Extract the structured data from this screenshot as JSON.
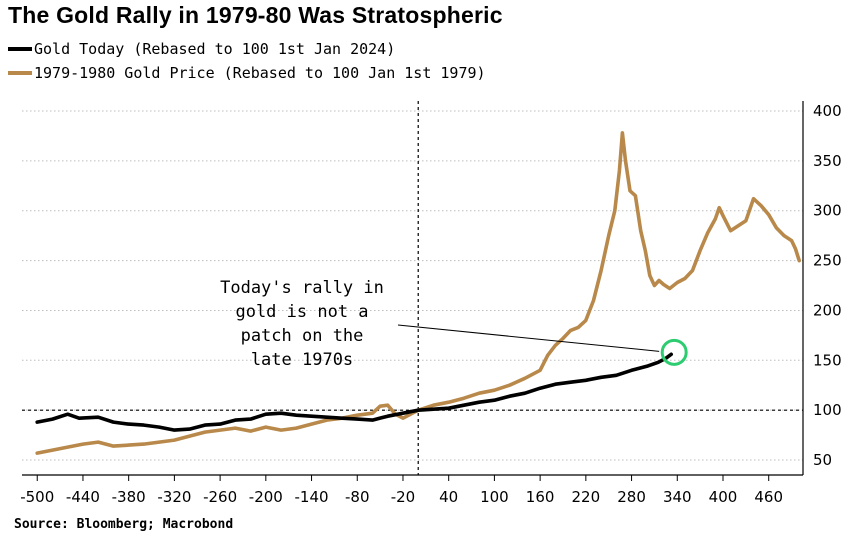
{
  "chart_data": {
    "type": "line",
    "title": "The Gold Rally in 1979-80 Was Stratospheric",
    "xlabel": "",
    "ylabel": "",
    "xlim": [
      -520,
      505
    ],
    "ylim": [
      35,
      410
    ],
    "x_ticks": [
      -500,
      -440,
      -380,
      -320,
      -260,
      -200,
      -140,
      -80,
      -20,
      40,
      100,
      160,
      220,
      280,
      340,
      400,
      460
    ],
    "y_ticks": [
      50,
      100,
      150,
      200,
      250,
      300,
      350,
      400
    ],
    "reference_hline": 100,
    "reference_vline": 0,
    "series": [
      {
        "name": "Gold Today (Rebased to 100 1st Jan 2024)",
        "color": "#000000",
        "points": [
          [
            -500,
            88
          ],
          [
            -480,
            91
          ],
          [
            -460,
            96
          ],
          [
            -445,
            92
          ],
          [
            -420,
            93
          ],
          [
            -400,
            88
          ],
          [
            -380,
            86
          ],
          [
            -360,
            85
          ],
          [
            -340,
            83
          ],
          [
            -320,
            80
          ],
          [
            -300,
            81
          ],
          [
            -280,
            85
          ],
          [
            -260,
            86
          ],
          [
            -240,
            90
          ],
          [
            -220,
            91
          ],
          [
            -200,
            96
          ],
          [
            -180,
            97
          ],
          [
            -160,
            95
          ],
          [
            -140,
            94
          ],
          [
            -120,
            93
          ],
          [
            -100,
            92
          ],
          [
            -80,
            91
          ],
          [
            -60,
            90
          ],
          [
            -40,
            94
          ],
          [
            -20,
            97
          ],
          [
            0,
            100
          ],
          [
            20,
            101
          ],
          [
            40,
            102
          ],
          [
            60,
            105
          ],
          [
            80,
            108
          ],
          [
            100,
            110
          ],
          [
            120,
            114
          ],
          [
            140,
            117
          ],
          [
            160,
            122
          ],
          [
            180,
            126
          ],
          [
            200,
            128
          ],
          [
            220,
            130
          ],
          [
            240,
            133
          ],
          [
            260,
            135
          ],
          [
            280,
            140
          ],
          [
            300,
            144
          ],
          [
            315,
            148
          ],
          [
            325,
            152
          ],
          [
            332,
            156
          ]
        ]
      },
      {
        "name": "1979-1980 Gold Price (Rebased to 100 Jan 1st 1979)",
        "color": "#b8894a",
        "points": [
          [
            -500,
            57
          ],
          [
            -480,
            60
          ],
          [
            -460,
            63
          ],
          [
            -440,
            66
          ],
          [
            -420,
            68
          ],
          [
            -400,
            64
          ],
          [
            -380,
            65
          ],
          [
            -360,
            66
          ],
          [
            -340,
            68
          ],
          [
            -320,
            70
          ],
          [
            -300,
            74
          ],
          [
            -280,
            78
          ],
          [
            -260,
            80
          ],
          [
            -240,
            82
          ],
          [
            -220,
            79
          ],
          [
            -200,
            83
          ],
          [
            -180,
            80
          ],
          [
            -160,
            82
          ],
          [
            -140,
            86
          ],
          [
            -120,
            90
          ],
          [
            -100,
            92
          ],
          [
            -80,
            95
          ],
          [
            -60,
            97
          ],
          [
            -50,
            104
          ],
          [
            -40,
            105
          ],
          [
            -30,
            96
          ],
          [
            -20,
            92
          ],
          [
            -10,
            96
          ],
          [
            0,
            100
          ],
          [
            20,
            105
          ],
          [
            40,
            108
          ],
          [
            60,
            112
          ],
          [
            80,
            117
          ],
          [
            100,
            120
          ],
          [
            120,
            125
          ],
          [
            140,
            132
          ],
          [
            160,
            140
          ],
          [
            170,
            155
          ],
          [
            180,
            165
          ],
          [
            190,
            172
          ],
          [
            200,
            180
          ],
          [
            210,
            183
          ],
          [
            220,
            190
          ],
          [
            230,
            210
          ],
          [
            240,
            240
          ],
          [
            250,
            275
          ],
          [
            258,
            300
          ],
          [
            264,
            340
          ],
          [
            268,
            378
          ],
          [
            272,
            350
          ],
          [
            278,
            320
          ],
          [
            285,
            315
          ],
          [
            292,
            280
          ],
          [
            298,
            260
          ],
          [
            304,
            235
          ],
          [
            310,
            225
          ],
          [
            316,
            230
          ],
          [
            322,
            226
          ],
          [
            330,
            222
          ],
          [
            340,
            228
          ],
          [
            350,
            232
          ],
          [
            360,
            240
          ],
          [
            370,
            260
          ],
          [
            380,
            278
          ],
          [
            390,
            292
          ],
          [
            395,
            303
          ],
          [
            400,
            295
          ],
          [
            410,
            280
          ],
          [
            420,
            285
          ],
          [
            430,
            290
          ],
          [
            440,
            312
          ],
          [
            450,
            305
          ],
          [
            460,
            296
          ],
          [
            470,
            283
          ],
          [
            480,
            275
          ],
          [
            490,
            270
          ],
          [
            495,
            262
          ],
          [
            500,
            250
          ]
        ]
      }
    ],
    "annotation": {
      "lines": [
        "Today's rally in",
        "gold is not a",
        "patch on the",
        "late 1970s"
      ],
      "points_to": [
        332,
        156
      ]
    },
    "source": "Source: Bloomberg; Macrobond"
  }
}
